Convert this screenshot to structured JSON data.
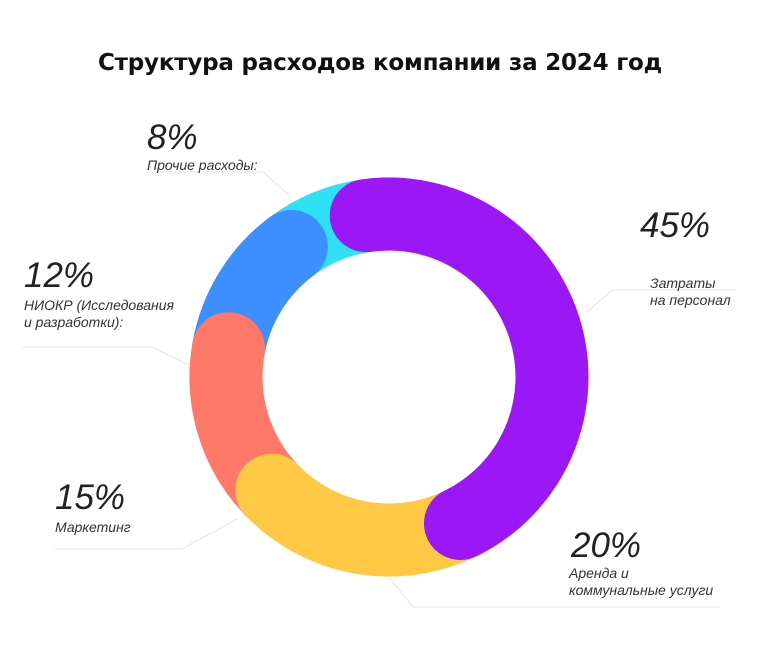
{
  "chart_data": {
    "type": "pie",
    "title": "Структура расходов компании за 2024 год",
    "slices": [
      {
        "key": "personnel",
        "percent_text": "45%",
        "label_lines": [
          "Затраты",
          "на персонал"
        ],
        "value": 45,
        "color": "#9B17F5"
      },
      {
        "key": "rent",
        "percent_text": "20%",
        "label_lines": [
          "Аренда и",
          "коммунальные услуги"
        ],
        "value": 20,
        "color": "#FFC845"
      },
      {
        "key": "marketing",
        "percent_text": "15%",
        "label_lines": [
          "Маркетинг"
        ],
        "value": 15,
        "color": "#FF7868"
      },
      {
        "key": "rnd",
        "percent_text": "12%",
        "label_lines": [
          "НИОКР (Исследования",
          "и разработки):"
        ],
        "value": 12,
        "color": "#3D8FFF"
      },
      {
        "key": "other",
        "percent_text": "8%",
        "label_lines": [
          "Прочие расходы:"
        ],
        "value": 8,
        "color": "#30E0F5"
      }
    ]
  }
}
